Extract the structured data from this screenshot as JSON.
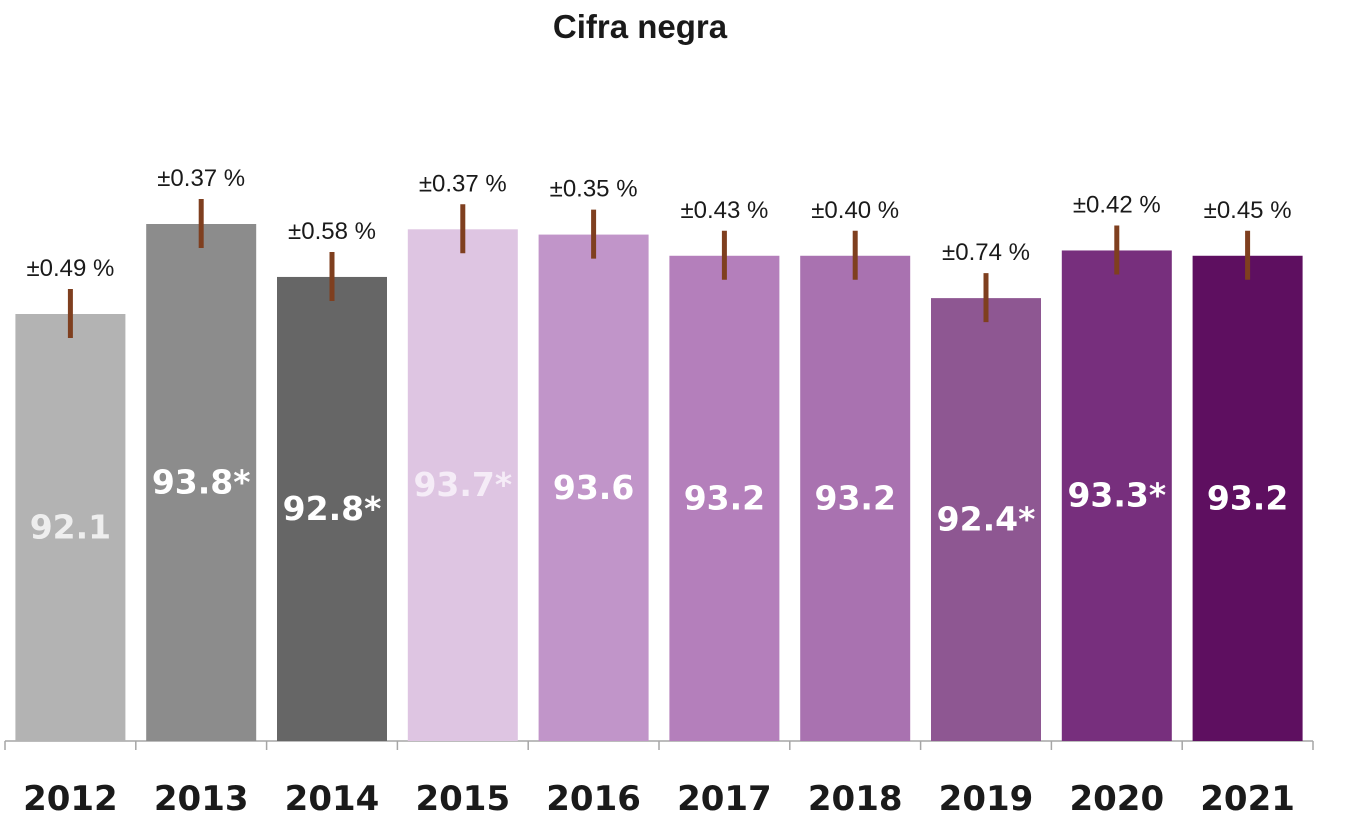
{
  "chart_data": {
    "type": "bar",
    "title": "Cifra negra",
    "xlabel": "",
    "ylabel": "",
    "ylim": [
      88,
      95
    ],
    "grid": false,
    "categories": [
      "2012",
      "2013",
      "2014",
      "2015",
      "2016",
      "2017",
      "2018",
      "2019",
      "2020",
      "2021"
    ],
    "values": [
      92.1,
      93.8,
      92.8,
      93.7,
      93.6,
      93.2,
      93.2,
      92.4,
      93.3,
      93.2
    ],
    "value_labels": [
      "92.1",
      "93.8*",
      "92.8*",
      "93.7*",
      "93.6",
      "93.2",
      "93.2",
      "92.4*",
      "93.3*",
      "93.2"
    ],
    "error_labels": [
      "±0.49 %",
      "±0.37 %",
      "±0.58 %",
      "±0.37 %",
      "±0.35 %",
      "±0.43 %",
      "±0.40 %",
      "±0.74 %",
      "±0.42 %",
      "±0.45 %"
    ],
    "bar_colors": [
      "#b3b3b3",
      "#8c8c8c",
      "#666666",
      "#dec5e2",
      "#c195c9",
      "#b47fbb",
      "#a972b0",
      "#8e5792",
      "#772f7d",
      "#5e0f60"
    ],
    "value_label_colors": [
      "#eeeeee",
      "#ffffff",
      "#ffffff",
      "#f5ecf7",
      "#ffffff",
      "#ffffff",
      "#ffffff",
      "#ffffff",
      "#ffffff",
      "#ffffff"
    ],
    "error_bar_color": "#7f3f1f",
    "axis_color": "#a6a6a6"
  }
}
